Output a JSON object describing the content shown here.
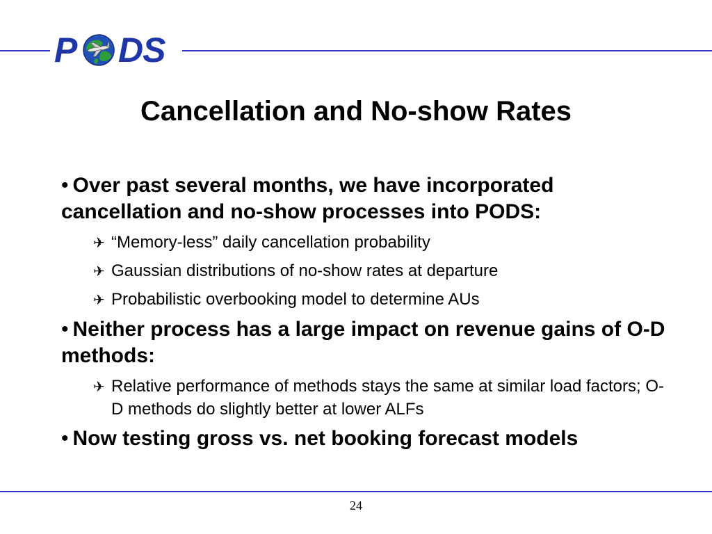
{
  "logo": {
    "letter_p": "P",
    "letters_ds": "DS",
    "globe_icon": "globe-with-airplane-icon"
  },
  "slide": {
    "title": "Cancellation and No-show Rates",
    "bullet_glyph": "•",
    "sub_glyph": "✈",
    "bullets": [
      {
        "text": "Over past several months, we have incorporated cancellation and no-show processes into PODS:",
        "subs": [
          "“Memory-less” daily cancellation probability",
          "Gaussian distributions of no-show rates at departure",
          "Probabilistic overbooking model to determine AUs"
        ]
      },
      {
        "text": "Neither process has a large impact on revenue gains of O-D methods:",
        "subs": [
          "Relative performance of methods stays the same at similar load factors; O-D methods do slightly better at lower ALFs"
        ]
      },
      {
        "text": "Now testing gross vs. net booking forecast models",
        "subs": []
      }
    ]
  },
  "footer": {
    "page_number": "24"
  },
  "colors": {
    "rule": "#3333cc",
    "logo_blue": "#1f36a8",
    "globe_green": "#2e9e3c",
    "globe_blue": "#2050b8"
  }
}
